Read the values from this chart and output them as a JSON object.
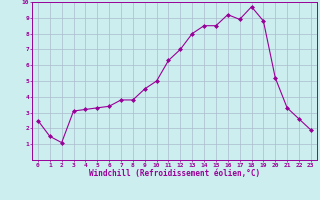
{
  "x": [
    0,
    1,
    2,
    3,
    4,
    5,
    6,
    7,
    8,
    9,
    10,
    11,
    12,
    13,
    14,
    15,
    16,
    17,
    18,
    19,
    20,
    21,
    22,
    23
  ],
  "y": [
    2.5,
    1.5,
    1.1,
    3.1,
    3.2,
    3.3,
    3.4,
    3.8,
    3.8,
    4.5,
    5.0,
    6.3,
    7.0,
    8.0,
    8.5,
    8.5,
    9.2,
    8.9,
    9.7,
    8.8,
    5.2,
    3.3,
    2.6,
    1.9
  ],
  "line_color": "#990099",
  "marker": "D",
  "marker_size": 2.0,
  "bg_color": "#cceeee",
  "grid_color": "#aabbcc",
  "xlabel": "Windchill (Refroidissement éolien,°C)",
  "xlabel_color": "#990099",
  "tick_color": "#990099",
  "xlim": [
    -0.5,
    23.5
  ],
  "ylim": [
    0,
    10
  ],
  "yticks": [
    1,
    2,
    3,
    4,
    5,
    6,
    7,
    8,
    9,
    10
  ],
  "xticks": [
    0,
    1,
    2,
    3,
    4,
    5,
    6,
    7,
    8,
    9,
    10,
    11,
    12,
    13,
    14,
    15,
    16,
    17,
    18,
    19,
    20,
    21,
    22,
    23
  ]
}
